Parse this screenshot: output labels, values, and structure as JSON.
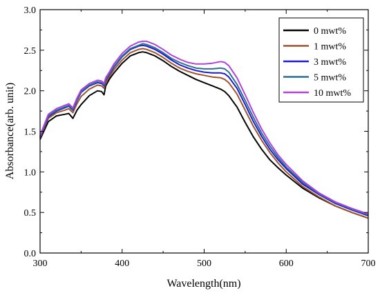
{
  "chart_data": {
    "type": "line",
    "xlabel": "Wavelength(nm)",
    "ylabel": "Absorbance(arb. unit)",
    "xlim": [
      300,
      700
    ],
    "ylim": [
      0.0,
      3.0
    ],
    "x_ticks": [
      "300",
      "400",
      "500",
      "600",
      "700"
    ],
    "y_ticks": [
      "0.0",
      "0.5",
      "1.0",
      "1.5",
      "2.0",
      "2.5",
      "3.0"
    ],
    "grid": false,
    "legend_position": "top-right",
    "x": [
      300,
      310,
      320,
      330,
      335,
      340,
      345,
      350,
      360,
      370,
      375,
      378,
      380,
      385,
      390,
      400,
      410,
      420,
      425,
      430,
      440,
      450,
      460,
      470,
      480,
      490,
      500,
      510,
      520,
      525,
      530,
      540,
      550,
      560,
      570,
      580,
      590,
      600,
      620,
      640,
      660,
      680,
      700
    ],
    "series": [
      {
        "name": "0 mwt%",
        "color": "#000000",
        "values": [
          1.4,
          1.62,
          1.69,
          1.71,
          1.72,
          1.66,
          1.76,
          1.83,
          1.94,
          2.0,
          1.99,
          1.95,
          2.06,
          2.15,
          2.22,
          2.34,
          2.43,
          2.47,
          2.48,
          2.47,
          2.43,
          2.37,
          2.3,
          2.24,
          2.19,
          2.14,
          2.1,
          2.06,
          2.02,
          1.99,
          1.94,
          1.8,
          1.61,
          1.43,
          1.28,
          1.15,
          1.05,
          0.96,
          0.8,
          0.68,
          0.58,
          0.5,
          0.43
        ]
      },
      {
        "name": "1 mwt%",
        "color": "#a0522d",
        "values": [
          1.42,
          1.66,
          1.73,
          1.76,
          1.78,
          1.73,
          1.84,
          1.93,
          2.02,
          2.07,
          2.06,
          2.03,
          2.1,
          2.18,
          2.26,
          2.38,
          2.47,
          2.51,
          2.52,
          2.51,
          2.47,
          2.41,
          2.34,
          2.28,
          2.24,
          2.21,
          2.19,
          2.17,
          2.16,
          2.14,
          2.1,
          1.96,
          1.76,
          1.56,
          1.39,
          1.24,
          1.11,
          1.0,
          0.82,
          0.69,
          0.58,
          0.5,
          0.43
        ]
      },
      {
        "name": "3 mwt%",
        "color": "#1a1acc",
        "values": [
          1.43,
          1.68,
          1.75,
          1.79,
          1.81,
          1.76,
          1.88,
          1.98,
          2.06,
          2.1,
          2.09,
          2.06,
          2.13,
          2.21,
          2.29,
          2.42,
          2.51,
          2.55,
          2.56,
          2.55,
          2.51,
          2.45,
          2.38,
          2.32,
          2.28,
          2.25,
          2.23,
          2.22,
          2.22,
          2.21,
          2.17,
          2.03,
          1.83,
          1.62,
          1.44,
          1.28,
          1.15,
          1.04,
          0.85,
          0.72,
          0.61,
          0.53,
          0.46
        ]
      },
      {
        "name": "5 mwt%",
        "color": "#2a6f8f",
        "values": [
          1.44,
          1.69,
          1.76,
          1.8,
          1.82,
          1.77,
          1.89,
          1.99,
          2.07,
          2.11,
          2.1,
          2.07,
          2.14,
          2.22,
          2.3,
          2.43,
          2.52,
          2.56,
          2.58,
          2.57,
          2.53,
          2.47,
          2.4,
          2.35,
          2.31,
          2.28,
          2.27,
          2.27,
          2.28,
          2.27,
          2.23,
          2.08,
          1.88,
          1.67,
          1.48,
          1.32,
          1.18,
          1.06,
          0.87,
          0.73,
          0.62,
          0.54,
          0.47
        ]
      },
      {
        "name": "10 mwt%",
        "color": "#b040e0",
        "values": [
          1.45,
          1.71,
          1.78,
          1.82,
          1.84,
          1.79,
          1.91,
          2.01,
          2.09,
          2.13,
          2.12,
          2.09,
          2.16,
          2.24,
          2.33,
          2.46,
          2.55,
          2.6,
          2.61,
          2.61,
          2.57,
          2.51,
          2.44,
          2.39,
          2.35,
          2.33,
          2.33,
          2.34,
          2.36,
          2.35,
          2.31,
          2.16,
          1.95,
          1.73,
          1.53,
          1.36,
          1.21,
          1.09,
          0.89,
          0.74,
          0.63,
          0.55,
          0.48
        ]
      }
    ]
  }
}
